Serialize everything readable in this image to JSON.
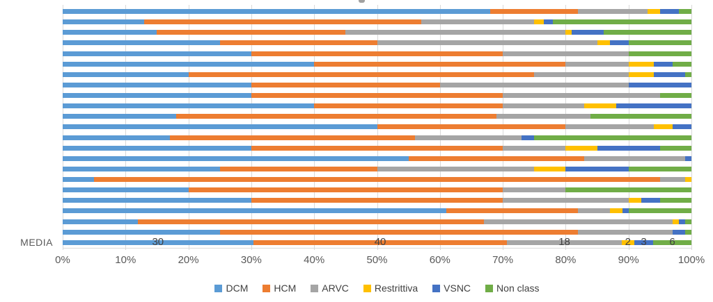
{
  "colors": {
    "background": "#FFFFFF",
    "grid": "#D9D9D9",
    "axis_text": "#595959",
    "data_label": "#404040"
  },
  "y_axis": {
    "media_label": "MEDIA"
  },
  "chart_data": {
    "type": "bar",
    "variant": "horizontal-stacked-100",
    "title": "",
    "xlabel": "",
    "ylabel": "",
    "xlim": [
      0,
      100
    ],
    "grid": true,
    "legend_position": "bottom",
    "x_ticks": [
      "0%",
      "10%",
      "20%",
      "30%",
      "40%",
      "50%",
      "60%",
      "70%",
      "80%",
      "90%",
      "100%"
    ],
    "series": [
      {
        "name": "DCM",
        "color": "#5B9BD5"
      },
      {
        "name": "HCM",
        "color": "#ED7D31"
      },
      {
        "name": "ARVC",
        "color": "#A5A5A5"
      },
      {
        "name": "Restrittiva",
        "color": "#FFC000"
      },
      {
        "name": "VSNC",
        "color": "#4472C4"
      },
      {
        "name": "Non class",
        "color": "#70AD47"
      }
    ],
    "rows": [
      {
        "label": "",
        "values": [
          68,
          14,
          11,
          2,
          3,
          2
        ]
      },
      {
        "label": "",
        "values": [
          13,
          44,
          18,
          1.5,
          1.5,
          22
        ]
      },
      {
        "label": "",
        "values": [
          15,
          30,
          35,
          1,
          5,
          14
        ]
      },
      {
        "label": "",
        "values": [
          25,
          25,
          35,
          2,
          3,
          10
        ]
      },
      {
        "label": "",
        "values": [
          30,
          40,
          20,
          0,
          0,
          10
        ]
      },
      {
        "label": "",
        "values": [
          40,
          40,
          10,
          4,
          3,
          3
        ]
      },
      {
        "label": "",
        "values": [
          20,
          55,
          15,
          4,
          5,
          1
        ]
      },
      {
        "label": "",
        "values": [
          30,
          30,
          30,
          0,
          10,
          0
        ]
      },
      {
        "label": "",
        "values": [
          30,
          40,
          25,
          0,
          0,
          5
        ]
      },
      {
        "label": "",
        "values": [
          40,
          30,
          13,
          5,
          12,
          0
        ]
      },
      {
        "label": "",
        "values": [
          18,
          51,
          15,
          0,
          0,
          16
        ]
      },
      {
        "label": "",
        "values": [
          50,
          30,
          14,
          3,
          3,
          0
        ]
      },
      {
        "label": "",
        "values": [
          17,
          39,
          17,
          0,
          2,
          25
        ]
      },
      {
        "label": "",
        "values": [
          30,
          40,
          10,
          5,
          10,
          5
        ]
      },
      {
        "label": "",
        "values": [
          55,
          28,
          16,
          0,
          1,
          0
        ]
      },
      {
        "label": "",
        "values": [
          25,
          25,
          25,
          5,
          10,
          10
        ]
      },
      {
        "label": "",
        "values": [
          5,
          90,
          4,
          1,
          0,
          0
        ]
      },
      {
        "label": "",
        "values": [
          20,
          50,
          10,
          0,
          0,
          20
        ]
      },
      {
        "label": "",
        "values": [
          30,
          40,
          20,
          2,
          3,
          5
        ]
      },
      {
        "label": "",
        "values": [
          61,
          21,
          5,
          2,
          1,
          10
        ]
      },
      {
        "label": "",
        "values": [
          12,
          55,
          30,
          1,
          1,
          1
        ]
      },
      {
        "label": "",
        "values": [
          25,
          57,
          15,
          0,
          2,
          1
        ]
      },
      {
        "label": "MEDIA",
        "values": [
          30,
          40,
          18,
          2,
          3,
          6
        ],
        "value_labels": [
          "30",
          "40",
          "18",
          "2",
          "3",
          "6"
        ]
      }
    ]
  }
}
